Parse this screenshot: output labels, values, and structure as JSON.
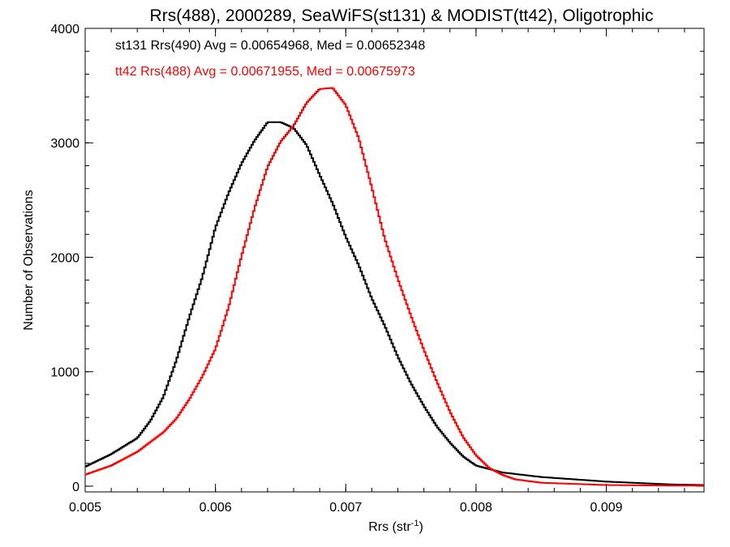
{
  "chart_data": {
    "type": "line",
    "title": "Rrs(488), 2000289, SeaWiFS(st131) & MODIST(tt42), Oligotrophic",
    "xlabel": "Rrs (str",
    "xlabel_sup": "-1",
    "xlabel_close": ")",
    "ylabel": "Number of Observations",
    "xlim": [
      0.005,
      0.00975
    ],
    "ylim": [
      -50,
      4000
    ],
    "x_ticks": [
      0.005,
      0.006,
      0.007,
      0.008,
      0.009
    ],
    "x_tick_labels": [
      "0.005",
      "0.006",
      "0.007",
      "0.008",
      "0.009"
    ],
    "y_ticks": [
      0,
      1000,
      2000,
      3000,
      4000
    ],
    "y_tick_labels": [
      "0",
      "1000",
      "2000",
      "3000",
      "4000"
    ],
    "grid": false,
    "legend_position": "top-left",
    "annotations": [
      {
        "text": "st131 Rrs(490) Avg = 0.00654968, Med = 0.00652348",
        "color": "#000000"
      },
      {
        "text": "tt42 Rrs(488) Avg = 0.00671955, Med = 0.00675973",
        "color": "#ff0000"
      }
    ],
    "series": [
      {
        "color": "#000000",
        "x": [
          0.005,
          0.0052,
          0.0054,
          0.0055,
          0.0056,
          0.0057,
          0.0058,
          0.0059,
          0.006,
          0.0061,
          0.0062,
          0.0063,
          0.0064,
          0.0065,
          0.0066,
          0.0067,
          0.0068,
          0.0069,
          0.007,
          0.0071,
          0.0072,
          0.0073,
          0.0074,
          0.0075,
          0.0076,
          0.0077,
          0.0078,
          0.0079,
          0.008,
          0.0082,
          0.0085,
          0.009,
          0.0095,
          0.00975
        ],
        "y": [
          170,
          280,
          420,
          570,
          780,
          1100,
          1480,
          1830,
          2260,
          2560,
          2820,
          3020,
          3180,
          3180,
          3130,
          2980,
          2720,
          2470,
          2180,
          1930,
          1640,
          1400,
          1130,
          900,
          700,
          520,
          380,
          260,
          180,
          120,
          80,
          40,
          15,
          10
        ]
      },
      {
        "color": "#ff0000",
        "x": [
          0.005,
          0.0052,
          0.0054,
          0.0056,
          0.0057,
          0.0058,
          0.0059,
          0.006,
          0.0061,
          0.0062,
          0.0063,
          0.0064,
          0.0065,
          0.0066,
          0.0067,
          0.0068,
          0.0069,
          0.007,
          0.0071,
          0.0072,
          0.0073,
          0.0074,
          0.0075,
          0.0076,
          0.0077,
          0.0078,
          0.0079,
          0.008,
          0.0081,
          0.0082,
          0.0083,
          0.0085,
          0.009,
          0.0095,
          0.00975
        ],
        "y": [
          100,
          180,
          300,
          470,
          590,
          760,
          960,
          1200,
          1560,
          2010,
          2430,
          2790,
          3010,
          3150,
          3350,
          3470,
          3480,
          3330,
          3040,
          2610,
          2160,
          1810,
          1490,
          1190,
          910,
          650,
          430,
          270,
          160,
          100,
          60,
          30,
          10,
          5,
          5
        ]
      }
    ]
  }
}
